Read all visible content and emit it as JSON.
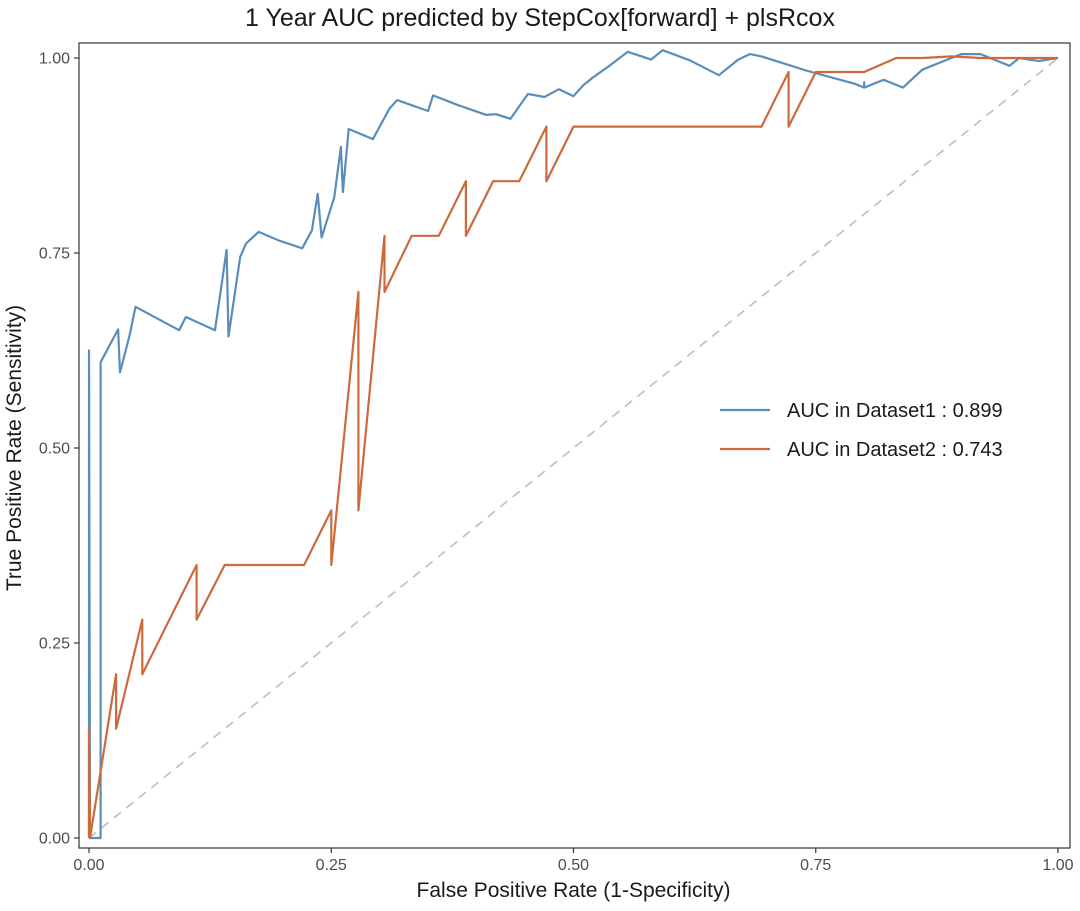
{
  "chart_data": {
    "type": "line",
    "title": "1 Year AUC predicted by StepCox[forward] + plsRcox",
    "xlabel": "False Positive Rate (1-Specificity)",
    "ylabel": "True Positive Rate (Sensitivity)",
    "xlim": [
      0,
      1
    ],
    "ylim": [
      0,
      1
    ],
    "x_ticks": [
      "0.00",
      "0.25",
      "0.50",
      "0.75",
      "1.00"
    ],
    "y_ticks": [
      "0.00",
      "0.25",
      "0.50",
      "0.75",
      "1.00"
    ],
    "grid": false,
    "legend_position": "right-center",
    "reference_line": {
      "style": "dashed",
      "color": "#bdbdbd",
      "from": [
        0,
        0
      ],
      "to": [
        1,
        1
      ]
    },
    "series": [
      {
        "name": "AUC in Dataset1 : 0.899",
        "color": "#5b8db8",
        "x": [
          0,
          0,
          0.001,
          0.012,
          0.012,
          0.03,
          0.032,
          0.042,
          0.048,
          0.093,
          0.1,
          0.13,
          0.142,
          0.144,
          0.156,
          0.162,
          0.175,
          0.196,
          0.22,
          0.23,
          0.236,
          0.24,
          0.253,
          0.26,
          0.262,
          0.268,
          0.293,
          0.31,
          0.318,
          0.35,
          0.355,
          0.38,
          0.41,
          0.42,
          0.435,
          0.453,
          0.47,
          0.485,
          0.5,
          0.51,
          0.52,
          0.537,
          0.556,
          0.58,
          0.592,
          0.62,
          0.65,
          0.67,
          0.682,
          0.694,
          0.74,
          0.79,
          0.8,
          0.8,
          0.8,
          0.8,
          0.82,
          0.84,
          0.86,
          0.88,
          0.9,
          0.92,
          0.93,
          0.95,
          0.96,
          0.98,
          1.0
        ],
        "y": [
          0,
          0.625,
          0,
          0,
          0.61,
          0.652,
          0.597,
          0.645,
          0.681,
          0.651,
          0.668,
          0.651,
          0.754,
          0.643,
          0.745,
          0.762,
          0.777,
          0.766,
          0.756,
          0.779,
          0.826,
          0.77,
          0.821,
          0.886,
          0.828,
          0.909,
          0.896,
          0.935,
          0.946,
          0.932,
          0.952,
          0.94,
          0.927,
          0.928,
          0.922,
          0.954,
          0.95,
          0.96,
          0.951,
          0.965,
          0.975,
          0.99,
          1.008,
          0.998,
          1.01,
          0.997,
          0.978,
          0.998,
          1.005,
          1.002,
          0.984,
          0.967,
          0.962,
          0.969,
          0.963,
          0.962,
          0.972,
          0.962,
          0.985,
          0.995,
          1.005,
          1.005,
          1.0,
          0.99,
          1.0,
          0.996,
          1.0
        ]
      },
      {
        "name": "AUC in Dataset2 : 0.743",
        "color": "#cd6a3c",
        "x": [
          0,
          0,
          0.001,
          0.028,
          0.028,
          0.055,
          0.055,
          0.111,
          0.111,
          0.14,
          0.222,
          0.25,
          0.25,
          0.278,
          0.278,
          0.305,
          0.305,
          0.333,
          0.361,
          0.389,
          0.389,
          0.417,
          0.444,
          0.472,
          0.472,
          0.5,
          0.528,
          0.556,
          0.694,
          0.722,
          0.722,
          0.75,
          0.8,
          0.833,
          0.86,
          0.89,
          0.92,
          1.0
        ],
        "y": [
          0,
          0.14,
          0,
          0.21,
          0.14,
          0.28,
          0.21,
          0.35,
          0.28,
          0.35,
          0.35,
          0.42,
          0.35,
          0.7,
          0.42,
          0.772,
          0.7,
          0.772,
          0.772,
          0.842,
          0.772,
          0.842,
          0.842,
          0.912,
          0.842,
          0.912,
          0.912,
          0.912,
          0.912,
          0.982,
          0.912,
          0.982,
          0.982,
          1.0,
          1.0,
          1.002,
          1.0,
          1.0
        ]
      }
    ]
  }
}
